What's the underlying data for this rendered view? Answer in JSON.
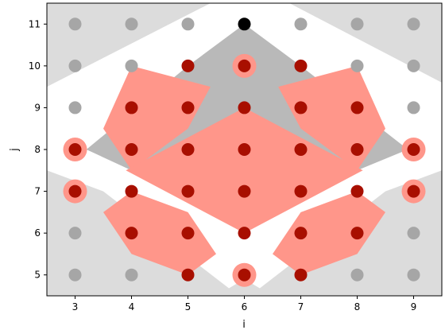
{
  "chart_data": {
    "type": "scatter",
    "title": "",
    "xlabel": "i",
    "ylabel": "j",
    "xlim": [
      2.5,
      9.5
    ],
    "ylim": [
      4.5,
      11.5
    ],
    "x_ticks": [
      3,
      4,
      5,
      6,
      7,
      8,
      9
    ],
    "y_ticks": [
      5,
      6,
      7,
      8,
      9,
      10,
      11
    ],
    "grid": false,
    "colors": {
      "light_region": "#dcdcdc",
      "mid_region": "#b9b9b9",
      "red_region": "#ff968a",
      "gray_point": "#a6a6a6",
      "red_point": "#a80f00",
      "black_point": "#000000",
      "halo": "#ff968a"
    },
    "regions": [
      {
        "class": "light",
        "polygon": [
          [
            2.5,
            11.5
          ],
          [
            5.4,
            11.5
          ],
          [
            2.5,
            9.5
          ]
        ]
      },
      {
        "class": "light",
        "polygon": [
          [
            6.8,
            11.5
          ],
          [
            9.5,
            11.5
          ],
          [
            9.5,
            9.6
          ]
        ]
      },
      {
        "class": "light",
        "polygon": [
          [
            2.5,
            7.5
          ],
          [
            3.5,
            7.0
          ],
          [
            5.9,
            4.5
          ],
          [
            2.5,
            4.5
          ]
        ]
      },
      {
        "class": "light",
        "polygon": [
          [
            9.5,
            7.5
          ],
          [
            8.5,
            7.0
          ],
          [
            6.1,
            4.5
          ],
          [
            9.5,
            4.5
          ]
        ]
      },
      {
        "class": "light",
        "polygon": [
          [
            5.5,
            4.5
          ],
          [
            6.0,
            4.9
          ],
          [
            6.5,
            4.5
          ]
        ]
      },
      {
        "class": "mid",
        "polygon": [
          [
            6.0,
            11.0
          ],
          [
            7.0,
            10.0
          ],
          [
            8.9,
            8.0
          ],
          [
            8.0,
            7.5
          ],
          [
            6.0,
            9.0
          ],
          [
            4.0,
            7.5
          ],
          [
            3.2,
            8.0
          ],
          [
            5.0,
            10.0
          ]
        ]
      },
      {
        "class": "red",
        "polygon": [
          [
            5.4,
            9.5
          ],
          [
            4.0,
            10.0
          ],
          [
            3.5,
            8.5
          ],
          [
            4.0,
            7.5
          ],
          [
            5.0,
            8.5
          ]
        ]
      },
      {
        "class": "red",
        "polygon": [
          [
            6.6,
            9.5
          ],
          [
            8.0,
            10.0
          ],
          [
            8.5,
            8.5
          ],
          [
            8.0,
            7.5
          ],
          [
            7.0,
            8.5
          ]
        ]
      },
      {
        "class": "red",
        "polygon": [
          [
            6.0,
            9.0
          ],
          [
            8.1,
            7.5
          ],
          [
            6.0,
            6.0
          ],
          [
            3.9,
            7.5
          ]
        ]
      },
      {
        "class": "red",
        "polygon": [
          [
            3.5,
            6.5
          ],
          [
            4.0,
            7.0
          ],
          [
            5.0,
            6.5
          ],
          [
            5.5,
            5.5
          ],
          [
            5.0,
            5.0
          ],
          [
            4.0,
            5.5
          ]
        ]
      },
      {
        "class": "red",
        "polygon": [
          [
            8.5,
            6.5
          ],
          [
            8.0,
            7.0
          ],
          [
            7.0,
            6.5
          ],
          [
            6.5,
            5.5
          ],
          [
            7.0,
            5.0
          ],
          [
            8.0,
            5.5
          ]
        ]
      }
    ],
    "series": [
      {
        "class": "gray",
        "points": [
          [
            3,
            11
          ],
          [
            4,
            11
          ],
          [
            5,
            11
          ],
          [
            7,
            11
          ],
          [
            8,
            11
          ],
          [
            9,
            11
          ],
          [
            3,
            10
          ],
          [
            4,
            10
          ],
          [
            8,
            10
          ],
          [
            9,
            10
          ],
          [
            3,
            9
          ],
          [
            9,
            9
          ],
          [
            3,
            6
          ],
          [
            9,
            6
          ],
          [
            3,
            5
          ],
          [
            4,
            5
          ],
          [
            8,
            5
          ],
          [
            9,
            5
          ]
        ]
      },
      {
        "class": "red",
        "points": [
          [
            5,
            10
          ],
          [
            6,
            10
          ],
          [
            7,
            10
          ],
          [
            4,
            9
          ],
          [
            5,
            9
          ],
          [
            6,
            9
          ],
          [
            7,
            9
          ],
          [
            8,
            9
          ],
          [
            3,
            8
          ],
          [
            4,
            8
          ],
          [
            5,
            8
          ],
          [
            6,
            8
          ],
          [
            7,
            8
          ],
          [
            8,
            8
          ],
          [
            9,
            8
          ],
          [
            3,
            7
          ],
          [
            4,
            7
          ],
          [
            5,
            7
          ],
          [
            6,
            7
          ],
          [
            7,
            7
          ],
          [
            8,
            7
          ],
          [
            9,
            7
          ],
          [
            4,
            6
          ],
          [
            5,
            6
          ],
          [
            6,
            6
          ],
          [
            7,
            6
          ],
          [
            8,
            6
          ],
          [
            5,
            5
          ],
          [
            6,
            5
          ],
          [
            7,
            5
          ]
        ]
      },
      {
        "class": "black",
        "points": [
          [
            6,
            11
          ]
        ]
      }
    ],
    "halos": [
      [
        6,
        10
      ],
      [
        3,
        8
      ],
      [
        9,
        8
      ],
      [
        3,
        7
      ],
      [
        9,
        7
      ],
      [
        6,
        5
      ]
    ]
  }
}
